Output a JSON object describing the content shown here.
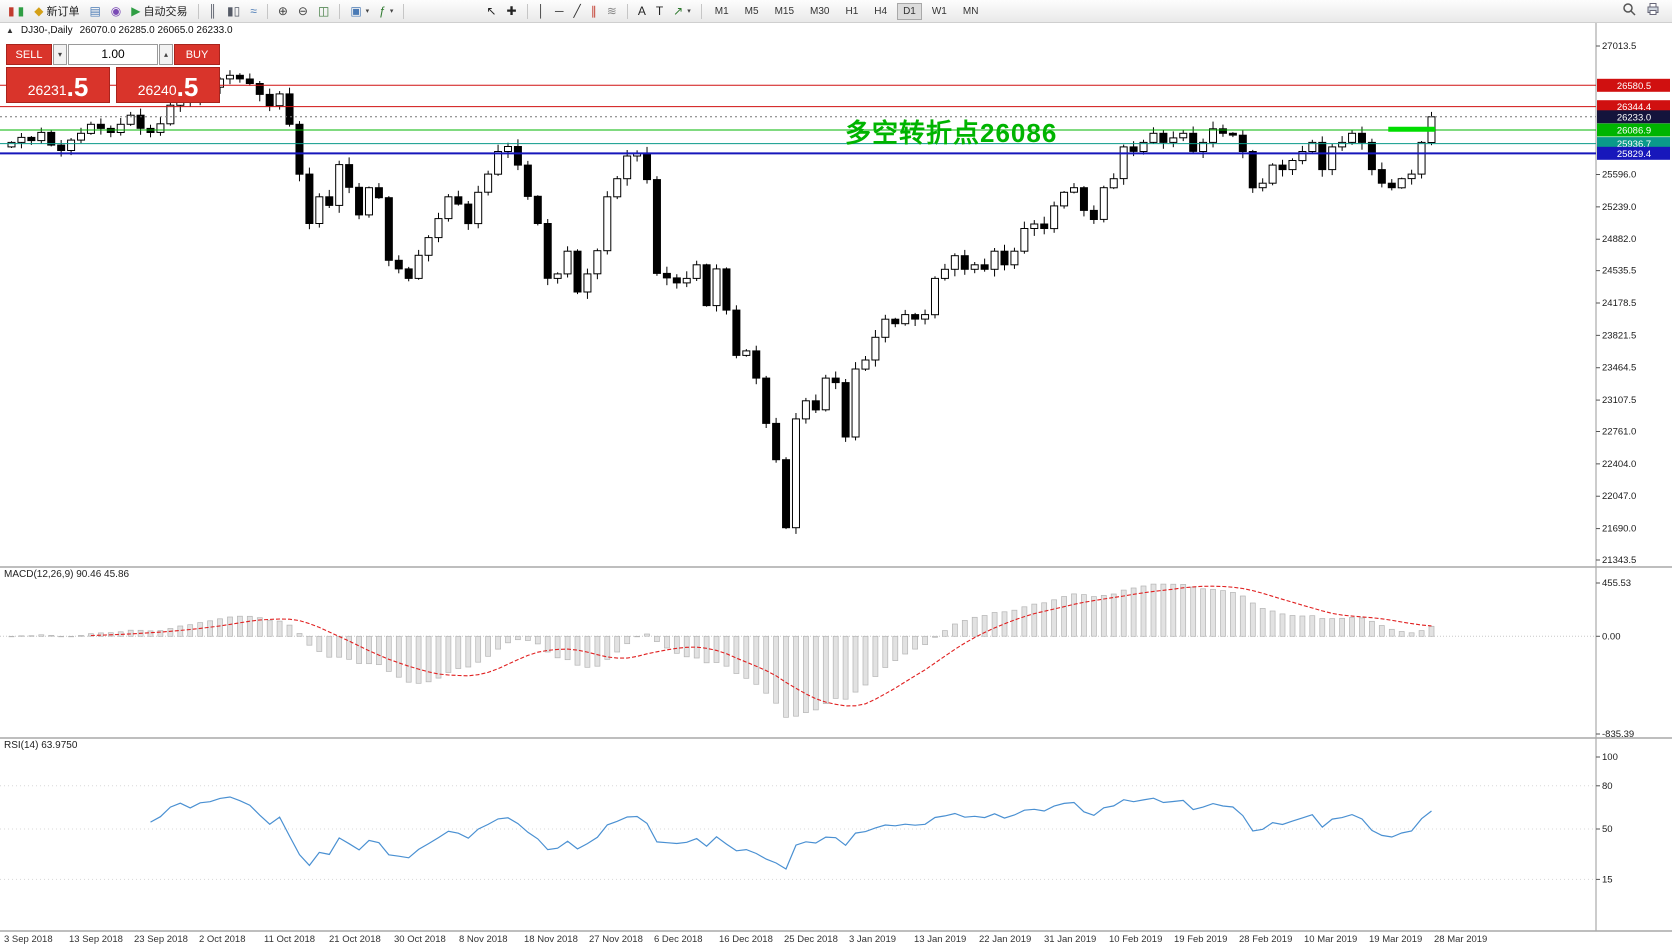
{
  "toolbar": {
    "items": [
      {
        "name": "new-chart-icon",
        "glyphs": [
          {
            "ch": "▮",
            "color": "#c23b2e"
          },
          {
            "ch": "▮",
            "color": "#2f9e44"
          }
        ]
      },
      {
        "name": "new-order-button",
        "label": "新订单",
        "glyphs": [
          {
            "ch": "◆",
            "color": "#d4a017"
          }
        ]
      },
      {
        "name": "profiles-icon",
        "glyphs": [
          {
            "ch": "▤",
            "color": "#4a7ab5"
          }
        ]
      },
      {
        "name": "market-watch-icon",
        "glyphs": [
          {
            "ch": "◉",
            "color": "#7a4ab5"
          }
        ]
      },
      {
        "name": "autotrading-button",
        "label": "自动交易",
        "glyphs": [
          {
            "ch": "▶",
            "color": "#2f9e44"
          }
        ]
      },
      {
        "type": "sep"
      },
      {
        "name": "bar-chart-mode-icon",
        "glyphs": [
          {
            "ch": "║",
            "color": "#555a66"
          }
        ]
      },
      {
        "name": "candlestick-mode-icon",
        "glyphs": [
          {
            "ch": "▮▯",
            "color": "#555a66"
          }
        ]
      },
      {
        "name": "line-chart-mode-icon",
        "glyphs": [
          {
            "ch": "≈",
            "color": "#4a7ab5"
          }
        ]
      },
      {
        "type": "sep"
      },
      {
        "name": "zoom-in-icon",
        "glyphs": [
          {
            "ch": "⊕",
            "color": "#444444"
          }
        ]
      },
      {
        "name": "zoom-out-icon",
        "glyphs": [
          {
            "ch": "⊖",
            "color": "#444444"
          }
        ]
      },
      {
        "name": "tile-windows-icon",
        "glyphs": [
          {
            "ch": "◫",
            "color": "#3f7a3f"
          }
        ]
      },
      {
        "type": "sep"
      },
      {
        "name": "templates-icon",
        "glyphs": [
          {
            "ch": "▣",
            "color": "#4a7ab5"
          }
        ],
        "caret": true
      },
      {
        "name": "indicators-icon",
        "glyphs": [
          {
            "ch": "ƒ",
            "color": "#2f7a2f"
          }
        ],
        "caret": true
      },
      {
        "type": "sep"
      },
      {
        "type": "gap",
        "w": 70
      },
      {
        "name": "cursor-icon",
        "glyphs": [
          {
            "ch": "↖",
            "color": "#222222"
          }
        ]
      },
      {
        "name": "crosshair-icon",
        "glyphs": [
          {
            "ch": "✚",
            "color": "#222222"
          }
        ]
      },
      {
        "type": "sep"
      },
      {
        "name": "vertical-line-icon",
        "glyphs": [
          {
            "ch": "│",
            "color": "#333333"
          }
        ]
      },
      {
        "name": "horizontal-line-icon",
        "glyphs": [
          {
            "ch": "─",
            "color": "#333333"
          }
        ]
      },
      {
        "name": "trendline-icon",
        "glyphs": [
          {
            "ch": "╱",
            "color": "#333333"
          }
        ]
      },
      {
        "name": "equidistant-channel-icon",
        "glyphs": [
          {
            "ch": "∥",
            "color": "#c23b2e"
          }
        ]
      },
      {
        "name": "fibonacci-icon",
        "glyphs": [
          {
            "ch": "≋",
            "color": "#888888"
          }
        ]
      },
      {
        "type": "sep"
      },
      {
        "name": "text-icon",
        "glyphs": [
          {
            "ch": "A",
            "color": "#222222"
          }
        ]
      },
      {
        "name": "text-label-icon",
        "glyphs": [
          {
            "ch": "T",
            "color": "#222222"
          }
        ]
      },
      {
        "name": "arrows-icon",
        "glyphs": [
          {
            "ch": "↗",
            "color": "#2f7a2f"
          }
        ],
        "caret": true
      },
      {
        "type": "sep"
      }
    ],
    "timeframes": [
      "M1",
      "M5",
      "M15",
      "M30",
      "H1",
      "H4",
      "D1",
      "W1",
      "MN"
    ],
    "active_timeframe": "D1"
  },
  "symbol_bar": {
    "collapse_glyph": "▲",
    "symbol": "DJ30-,Daily",
    "ohlc": "26070.0 26285.0 26065.0 26233.0"
  },
  "order_panel": {
    "sell_label": "SELL",
    "buy_label": "BUY",
    "volume": "1.00",
    "decrease_glyph": "▾",
    "increase_glyph": "▴",
    "sell_price_main": "26231",
    "sell_price_frac": ".5",
    "buy_price_main": "26240",
    "buy_price_frac": ".5",
    "color": "#d9342b"
  },
  "annotation": {
    "text": "多空转折点26086",
    "color": "#00b400"
  },
  "chart_data": {
    "type": "candlestick",
    "symbol": "DJ30-",
    "timeframe": "Daily",
    "ohlc_display": {
      "open": "26070.0",
      "high": "26285.0",
      "low": "26065.0",
      "close": "26233.0"
    },
    "price_axis": {
      "max": 27013.5,
      "min": 21343.5,
      "ticks": [
        27013.5,
        25596.0,
        25239.0,
        24882.0,
        24535.5,
        24178.5,
        23821.5,
        23464.5,
        23107.5,
        22761.0,
        22404.0,
        22047.0,
        21690.0,
        21343.5
      ]
    },
    "first_open": 25900,
    "closes": [
      25950,
      26005,
      25970,
      26060,
      25920,
      25860,
      25975,
      26050,
      26150,
      26105,
      26060,
      26150,
      26250,
      26105,
      26060,
      26155,
      26360,
      26460,
      26400,
      26530,
      26560,
      26650,
      26690,
      26650,
      26600,
      26480,
      26355,
      26485,
      26150,
      25600,
      25055,
      25350,
      25255,
      25705,
      25455,
      25150,
      25450,
      25340,
      24650,
      24555,
      24450,
      24705,
      24900,
      25110,
      25350,
      25270,
      25055,
      25400,
      25600,
      25850,
      25905,
      25700,
      25355,
      25055,
      24450,
      24500,
      24750,
      24300,
      24500,
      24755,
      25350,
      25550,
      25800,
      25830,
      25540,
      24505,
      24455,
      24400,
      24450,
      24600,
      24150,
      24555,
      24100,
      23600,
      23650,
      23350,
      22850,
      22450,
      21700,
      22900,
      23100,
      23000,
      23350,
      23300,
      22700,
      23450,
      23550,
      23800,
      24000,
      23950,
      24050,
      24000,
      24050,
      24450,
      24550,
      24700,
      24550,
      24600,
      24550,
      24750,
      24600,
      24750,
      25000,
      25050,
      25000,
      25250,
      25400,
      25450,
      25200,
      25100,
      25450,
      25550,
      25900,
      25850,
      25950,
      26050,
      25950,
      26000,
      26050,
      25850,
      25950,
      26100,
      26050,
      26030,
      25850,
      25450,
      25500,
      25700,
      25650,
      25750,
      25850,
      25950,
      25650,
      25900,
      25950,
      26050,
      25950,
      25650,
      25500,
      25450,
      25550,
      25600,
      25950,
      26233
    ],
    "x_labels": [
      "3 Sep 2018",
      "13 Sep 2018",
      "23 Sep 2018",
      "2 Oct 2018",
      "11 Oct 2018",
      "21 Oct 2018",
      "30 Oct 2018",
      "8 Nov 2018",
      "18 Nov 2018",
      "27 Nov 2018",
      "6 Dec 2018",
      "16 Dec 2018",
      "25 Dec 2018",
      "3 Jan 2019",
      "13 Jan 2019",
      "22 Jan 2019",
      "31 Jan 2019",
      "10 Feb 2019",
      "19 Feb 2019",
      "28 Feb 2019",
      "10 Mar 2019",
      "19 Mar 2019",
      "28 Mar 2019"
    ],
    "hlines": [
      {
        "price": 26580.5,
        "label": "26580.5",
        "color": "#d01010",
        "width": 1
      },
      {
        "price": 26344.4,
        "label": "26344.4",
        "color": "#d01010",
        "width": 1
      },
      {
        "price": 26086.9,
        "label": "26086.9",
        "color": "#00b400",
        "width": 1
      },
      {
        "price": 25936.7,
        "label": "25936.7",
        "color": "#0a9a8a",
        "width": 1
      },
      {
        "price": 25829.4,
        "label": "25829.4",
        "color": "#1717bb",
        "width": 2
      }
    ],
    "current_price": {
      "value": 26233.0,
      "label": "26233.0",
      "color": "#14143c"
    },
    "highlight_segment": {
      "price": 26095,
      "color": "#00dd00",
      "from_candle": 139,
      "to_candle": 143
    },
    "macd": {
      "label": "MACD(12,26,9) 90.46 45.86",
      "fast": 12,
      "slow": 26,
      "signal": 9,
      "axis": {
        "max": 455.53,
        "min": -835.39,
        "labels": [
          "455.53",
          "0.00",
          "-835.39"
        ]
      }
    },
    "rsi": {
      "label": "RSI(14) 63.9750",
      "period": 14,
      "levels": [
        100,
        80,
        50,
        15
      ]
    }
  }
}
